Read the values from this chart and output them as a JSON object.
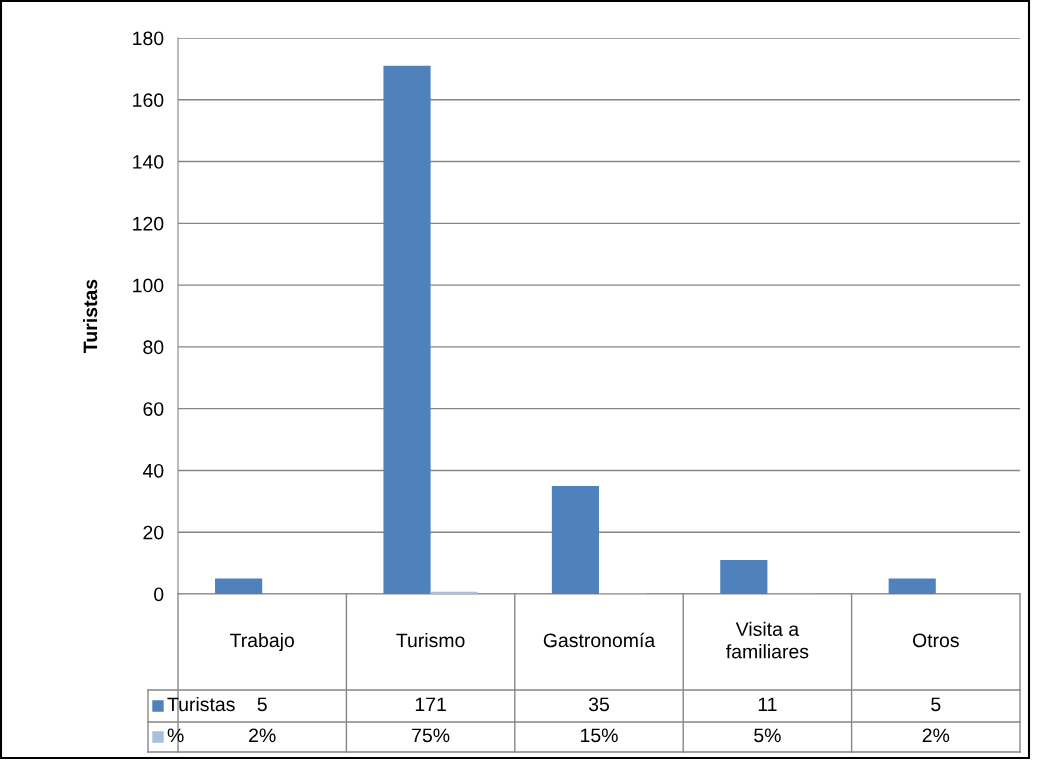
{
  "chart_data": {
    "type": "bar",
    "ylabel": "Turistas",
    "categories": [
      "Trabajo",
      "Turismo",
      "Gastronomía",
      "Visita a familiares",
      "Otros"
    ],
    "series": [
      {
        "name": "Turistas",
        "color": "#4f81bd",
        "values": [
          5,
          171,
          35,
          11,
          5
        ],
        "value_labels": [
          "5",
          "171",
          "35",
          "11",
          "5"
        ]
      },
      {
        "name": "%",
        "color": "#a7c0de",
        "values": [
          0.02,
          0.75,
          0.15,
          0.05,
          0.02
        ],
        "value_labels": [
          "2%",
          "75%",
          "15%",
          "5%",
          "2%"
        ]
      }
    ],
    "ylim": [
      0,
      180
    ],
    "yticks": [
      0,
      20,
      40,
      60,
      80,
      100,
      120,
      140,
      160,
      180
    ],
    "grid": "y",
    "legend": "bottom"
  }
}
